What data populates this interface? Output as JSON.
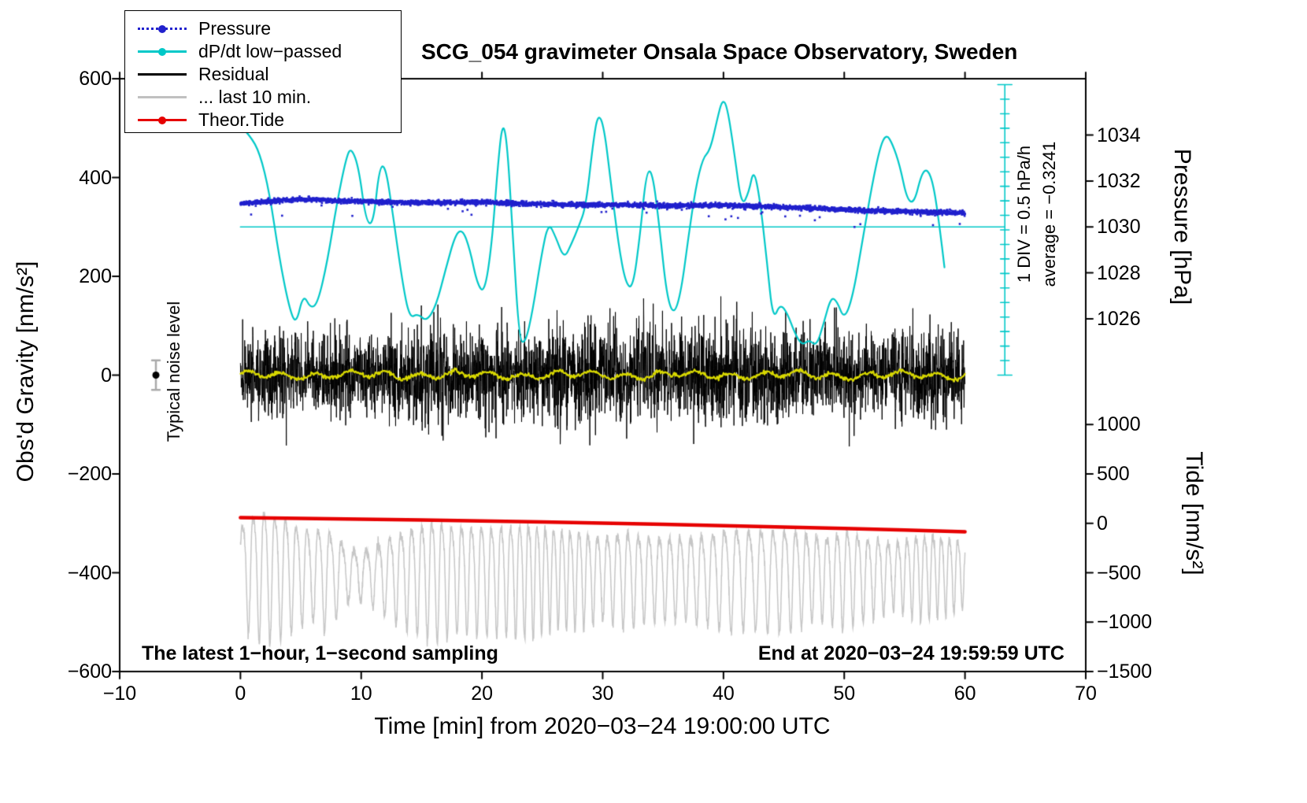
{
  "annotations": {
    "noise_label": "Typical noise level",
    "div_label": "1 DIV = 0.5 hPa/h",
    "average_label": "average = −0.3241",
    "sampling_label": "The latest 1−hour, 1−second sampling",
    "end_label": "End at 2020−03−24 19:59:59 UTC"
  },
  "legend": {
    "items": [
      {
        "label": "Pressure",
        "color": "#2121cd",
        "sample": "dotted-marker"
      },
      {
        "label": "dP/dt low−passed",
        "color": "#00c8c8",
        "sample": "solid-marker"
      },
      {
        "label": "Residual",
        "color": "#000000",
        "sample": "line"
      },
      {
        "label": "... last 10 min.",
        "color": "#c0c0c0",
        "sample": "line"
      },
      {
        "label": "Theor.Tide",
        "color": "#e60000",
        "sample": "solid-marker"
      }
    ]
  },
  "chart_data": {
    "type": "line",
    "title": "SCG_054 gravimeter Onsala Space Observatory, Sweden",
    "x_axis": {
      "label": "Time [min] from 2020−03−24 19:00:00 UTC",
      "min": -10,
      "max": 70,
      "ticks": [
        -10,
        0,
        10,
        20,
        30,
        40,
        50,
        60,
        70
      ]
    },
    "y_axis_left": {
      "label": "Obs'd Gravity [nm/s²]",
      "min": -600,
      "max": 600,
      "ticks": [
        -600,
        -400,
        -200,
        0,
        200,
        400,
        600
      ]
    },
    "y_axis_pressure": {
      "label": "Pressure [hPa]",
      "ticks": [
        1026,
        1028,
        1030,
        1032,
        1034
      ],
      "gravity_of_1030": 300,
      "gravity_per_hpa": 46.5
    },
    "y_axis_tide": {
      "label": "Tide [nm/s²]",
      "ticks": [
        -1500,
        -1000,
        -500,
        0,
        500,
        1000
      ],
      "gravity_of_0": -300,
      "gravity_per_unit": 0.2
    },
    "geometry": {
      "scalebar_time_min": 63.3,
      "scalebar_top_gravity": 588,
      "scalebar_bottom_gravity": 0,
      "scalebar_ticks": 20
    },
    "series": {
      "pressure": {
        "name": "Pressure",
        "color": "#2121cd",
        "marker_px": 2.6,
        "samples": 3600,
        "noise_sd_hpa": 0.05,
        "outlier_prob": 0.008,
        "trend_hpa": [
          [
            0,
            1031.0
          ],
          [
            2,
            1031.1
          ],
          [
            4,
            1031.18
          ],
          [
            6,
            1031.2
          ],
          [
            8,
            1031.15
          ],
          [
            12,
            1031.08
          ],
          [
            16,
            1031.05
          ],
          [
            20,
            1031.08
          ],
          [
            24,
            1031.0
          ],
          [
            28,
            1030.97
          ],
          [
            32,
            1030.95
          ],
          [
            36,
            1030.93
          ],
          [
            40,
            1030.95
          ],
          [
            44,
            1030.88
          ],
          [
            48,
            1030.8
          ],
          [
            52,
            1030.72
          ],
          [
            56,
            1030.65
          ],
          [
            60,
            1030.6
          ]
        ]
      },
      "dpdt_low_passed": {
        "name": "dP/dt low−passed",
        "color": "#00c8c8",
        "line_width": 2.2,
        "zero_line_gravity": 300,
        "div_hpa_per_h": 0.5,
        "average_hpa_per_h": -0.3241,
        "points": [
          [
            0,
            505
          ],
          [
            0.8,
            485
          ],
          [
            1.6,
            450
          ],
          [
            2.4,
            370
          ],
          [
            3.2,
            240
          ],
          [
            4,
            140
          ],
          [
            4.6,
            100
          ],
          [
            5.2,
            165
          ],
          [
            5.8,
            135
          ],
          [
            6.4,
            145
          ],
          [
            7.2,
            230
          ],
          [
            8,
            350
          ],
          [
            8.8,
            445
          ],
          [
            9.2,
            460
          ],
          [
            9.8,
            420
          ],
          [
            10.4,
            310
          ],
          [
            11,
            305
          ],
          [
            11.5,
            420
          ],
          [
            12,
            425
          ],
          [
            12.6,
            330
          ],
          [
            13.4,
            190
          ],
          [
            14,
            115
          ],
          [
            14.7,
            125
          ],
          [
            15.4,
            108
          ],
          [
            16.2,
            140
          ],
          [
            17,
            215
          ],
          [
            17.8,
            285
          ],
          [
            18.4,
            295
          ],
          [
            19,
            255
          ],
          [
            19.6,
            185
          ],
          [
            20.2,
            165
          ],
          [
            20.8,
            260
          ],
          [
            21.3,
            420
          ],
          [
            21.7,
            515
          ],
          [
            22.1,
            470
          ],
          [
            22.6,
            260
          ],
          [
            23.1,
            70
          ],
          [
            23.6,
            65
          ],
          [
            24.2,
            130
          ],
          [
            24.9,
            240
          ],
          [
            25.5,
            310
          ],
          [
            26.1,
            280
          ],
          [
            26.8,
            235
          ],
          [
            27.4,
            265
          ],
          [
            28,
            300
          ],
          [
            28.6,
            340
          ],
          [
            29.2,
            470
          ],
          [
            29.6,
            530
          ],
          [
            30.1,
            505
          ],
          [
            30.7,
            385
          ],
          [
            31.3,
            265
          ],
          [
            31.9,
            185
          ],
          [
            32.5,
            175
          ],
          [
            33.1,
            285
          ],
          [
            33.6,
            410
          ],
          [
            34.1,
            415
          ],
          [
            34.7,
            300
          ],
          [
            35.3,
            160
          ],
          [
            35.9,
            120
          ],
          [
            36.5,
            170
          ],
          [
            37.1,
            280
          ],
          [
            37.7,
            380
          ],
          [
            38.3,
            440
          ],
          [
            38.9,
            455
          ],
          [
            39.5,
            520
          ],
          [
            39.9,
            558
          ],
          [
            40.3,
            545
          ],
          [
            40.9,
            450
          ],
          [
            41.5,
            340
          ],
          [
            42.1,
            370
          ],
          [
            42.5,
            418
          ],
          [
            43,
            360
          ],
          [
            43.6,
            230
          ],
          [
            44.1,
            110
          ],
          [
            44.7,
            145
          ],
          [
            45.3,
            125
          ],
          [
            45.9,
            85
          ],
          [
            46.5,
            60
          ],
          [
            47.1,
            72
          ],
          [
            47.7,
            58
          ],
          [
            48.3,
            105
          ],
          [
            48.9,
            158
          ],
          [
            49.4,
            150
          ],
          [
            50,
            112
          ],
          [
            50.7,
            158
          ],
          [
            51.5,
            270
          ],
          [
            52.3,
            385
          ],
          [
            53,
            465
          ],
          [
            53.5,
            488
          ],
          [
            54,
            468
          ],
          [
            54.6,
            425
          ],
          [
            55.2,
            355
          ],
          [
            55.8,
            348
          ],
          [
            56.4,
            408
          ],
          [
            56.9,
            418
          ],
          [
            57.4,
            385
          ],
          [
            57.9,
            300
          ],
          [
            58.3,
            218
          ]
        ]
      },
      "residual": {
        "name": "Residual",
        "color": "#000000",
        "line_width": 1,
        "samples": 3600,
        "mean": 0,
        "spike_prob": 0.005,
        "spike_scale": 2.4,
        "clamp": 285,
        "amplitude_envelope": [
          [
            0,
            55
          ],
          [
            2,
            75
          ],
          [
            4,
            95
          ],
          [
            5,
            70
          ],
          [
            7,
            78
          ],
          [
            9,
            72
          ],
          [
            11,
            68
          ],
          [
            13,
            78
          ],
          [
            15,
            95
          ],
          [
            16,
            102
          ],
          [
            17,
            82
          ],
          [
            19,
            78
          ],
          [
            21,
            88
          ],
          [
            23,
            72
          ],
          [
            25,
            90
          ],
          [
            27,
            104
          ],
          [
            28,
            92
          ],
          [
            30,
            88
          ],
          [
            32,
            96
          ],
          [
            34,
            86
          ],
          [
            36,
            78
          ],
          [
            38,
            82
          ],
          [
            40,
            92
          ],
          [
            41,
            98
          ],
          [
            43,
            88
          ],
          [
            45,
            82
          ],
          [
            47,
            74
          ],
          [
            49,
            78
          ],
          [
            51,
            76
          ],
          [
            53,
            72
          ],
          [
            55,
            80
          ],
          [
            57,
            84
          ],
          [
            59,
            78
          ],
          [
            60,
            76
          ]
        ]
      },
      "residual_low_passed": {
        "name": "Residual low−passed",
        "color": "#d8d800",
        "line_width": 2.2,
        "amplitude": 9
      },
      "last_10_min": {
        "name": "... last 10 min.",
        "color": "#c6c6c6",
        "line_width": 1.5,
        "period_min": 0.85,
        "center": [
          [
            0,
            -388
          ],
          [
            10,
            -398
          ],
          [
            20,
            -400
          ],
          [
            30,
            -400
          ],
          [
            40,
            -400
          ],
          [
            50,
            -400
          ],
          [
            60,
            -396
          ]
        ],
        "amplitude_envelope": [
          [
            0,
            115
          ],
          [
            1,
            145
          ],
          [
            2,
            158
          ],
          [
            3,
            150
          ],
          [
            4,
            138
          ],
          [
            5,
            118
          ],
          [
            6,
            108
          ],
          [
            7,
            125
          ],
          [
            8,
            95
          ],
          [
            9,
            62
          ],
          [
            10,
            60
          ],
          [
            11,
            72
          ],
          [
            12,
            92
          ],
          [
            14,
            122
          ],
          [
            16,
            148
          ],
          [
            18,
            128
          ],
          [
            20,
            130
          ],
          [
            22,
            132
          ],
          [
            24,
            138
          ],
          [
            26,
            118
          ],
          [
            28,
            118
          ],
          [
            30,
            100
          ],
          [
            32,
            120
          ],
          [
            34,
            100
          ],
          [
            36,
            100
          ],
          [
            38,
            102
          ],
          [
            40,
            122
          ],
          [
            42,
            118
          ],
          [
            44,
            122
          ],
          [
            46,
            118
          ],
          [
            48,
            100
          ],
          [
            50,
            118
          ],
          [
            52,
            98
          ],
          [
            54,
            80
          ],
          [
            56,
            102
          ],
          [
            58,
            98
          ],
          [
            60,
            80
          ]
        ]
      },
      "theor_tide": {
        "name": "Theor.Tide",
        "color": "#e60000",
        "line_width": 4.5,
        "unit": "tide_nm_s2",
        "points": [
          [
            0,
            58
          ],
          [
            5,
            50
          ],
          [
            10,
            42
          ],
          [
            15,
            33
          ],
          [
            20,
            23
          ],
          [
            25,
            13
          ],
          [
            30,
            2
          ],
          [
            35,
            -10
          ],
          [
            40,
            -23
          ],
          [
            45,
            -37
          ],
          [
            50,
            -52
          ],
          [
            55,
            -68
          ],
          [
            60,
            -85
          ]
        ]
      },
      "noise_level": {
        "x": -7,
        "gravity": 0,
        "error": 30
      }
    }
  }
}
